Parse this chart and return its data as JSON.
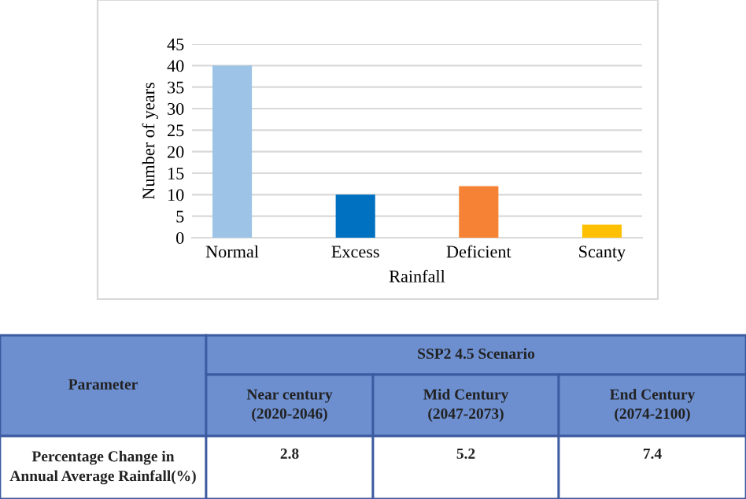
{
  "chart_data": [
    {
      "type": "bar",
      "xlabel": "Rainfall",
      "ylabel": "Number of years",
      "categories": [
        "Normal",
        "Excess",
        "Deficient",
        "Scanty"
      ],
      "values": [
        40,
        10,
        12,
        3
      ],
      "colors": [
        "#9dc3e6",
        "#0070c0",
        "#f58235",
        "#ffc000"
      ],
      "ylim": [
        0,
        45
      ],
      "yticks": [
        0,
        5,
        10,
        15,
        20,
        25,
        30,
        35,
        40,
        45
      ],
      "grid": "y",
      "legend": false
    },
    {
      "type": "other",
      "annotations": [
        "Parameter",
        "SSP2 4.5 Scenario",
        "Near century\n(2020-2046)",
        "Mid Century\n(2047-2073)",
        "End Century\n(2074-2100)",
        "Percentage Change in\nAnnual Average Rainfall(%)",
        "2.8",
        "5.2",
        "7.4"
      ]
    }
  ]
}
